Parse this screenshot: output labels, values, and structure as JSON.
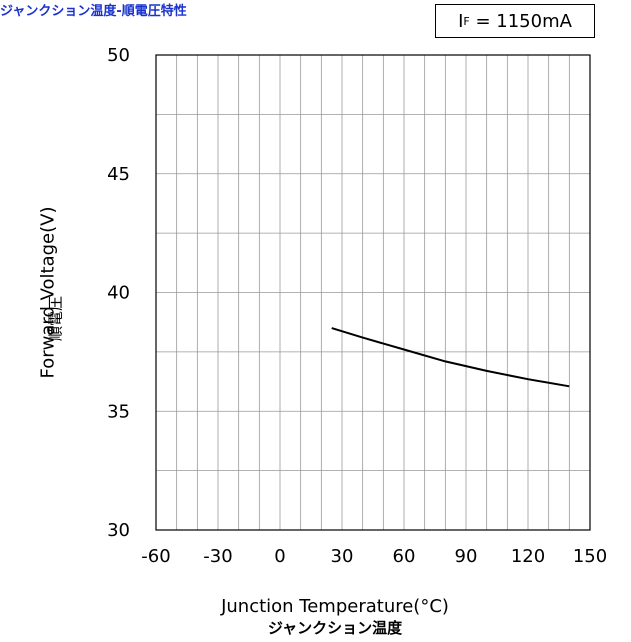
{
  "chart_title": "ジャンクション温度-順電圧特性",
  "condition": {
    "symbol": "I",
    "subscript": "F",
    "value": "= 1150mA"
  },
  "chart_data": {
    "type": "line",
    "xlabel": "Junction Temperature(°C)",
    "xlabel_jp": "ジャンクション温度",
    "ylabel": "Forward Voltage(V)",
    "ylabel_jp": "順電圧",
    "xlim": [
      -60,
      150
    ],
    "ylim": [
      30,
      50
    ],
    "xticks": [
      -60,
      -30,
      0,
      30,
      60,
      90,
      120,
      150
    ],
    "yticks": [
      30,
      35,
      40,
      45,
      50
    ],
    "x_minor_step": 10,
    "y_minor_step": 2.5,
    "grid": true,
    "series": [
      {
        "x": [
          25,
          40,
          60,
          80,
          100,
          120,
          140
        ],
        "y": [
          38.5,
          38.1,
          37.6,
          37.1,
          36.7,
          36.35,
          36.05
        ]
      }
    ]
  }
}
